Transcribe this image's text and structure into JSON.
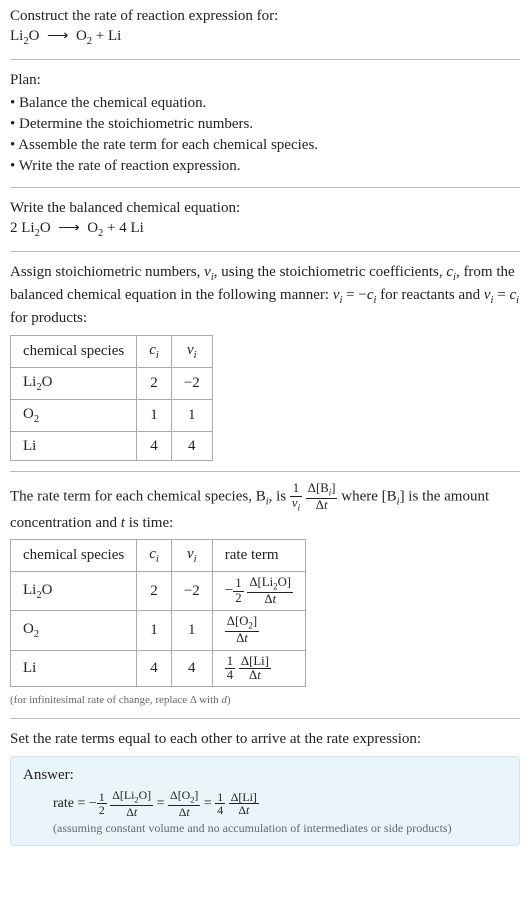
{
  "prompt": {
    "title": "Construct the rate of reaction expression for:",
    "equation_html": "Li<span class='sub'>2</span>O &nbsp;<span class='arrow'>⟶</span>&nbsp; O<span class='sub'>2</span> + Li"
  },
  "plan": {
    "heading": "Plan:",
    "items": [
      "• Balance the chemical equation.",
      "• Determine the stoichiometric numbers.",
      "• Assemble the rate term for each chemical species.",
      "• Write the rate of reaction expression."
    ]
  },
  "balanced": {
    "heading": "Write the balanced chemical equation:",
    "equation_html": "2 Li<span class='sub'>2</span>O &nbsp;<span class='arrow'>⟶</span>&nbsp; O<span class='sub'>2</span> + 4 Li"
  },
  "stoich": {
    "intro_html": "Assign stoichiometric numbers, <span class='math-i'>ν<span class='sub'>i</span></span>, using the stoichiometric coefficients, <span class='math-i'>c<span class='sub'>i</span></span>, from the balanced chemical equation in the following manner: <span class='math-i'>ν<span class='sub'>i</span></span> = −<span class='math-i'>c<span class='sub'>i</span></span> for reactants and <span class='math-i'>ν<span class='sub'>i</span></span> = <span class='math-i'>c<span class='sub'>i</span></span> for products:",
    "headers": {
      "species": "chemical species",
      "c": "c<span class='sub'>i</span>",
      "v": "ν<span class='sub'>i</span>"
    },
    "rows": [
      {
        "species_html": "Li<span class='sub'>2</span>O",
        "c": "2",
        "v": "−2"
      },
      {
        "species_html": "O<span class='sub'>2</span>",
        "c": "1",
        "v": "1"
      },
      {
        "species_html": "Li",
        "c": "4",
        "v": "4"
      }
    ]
  },
  "rate_term": {
    "intro_html": "The rate term for each chemical species, B<span class='sub'><span class='math-i'>i</span></span>, is <span class='frac'><span class='num'>1</span><span class='den'><span class='math-i'>ν<span class='sub'>i</span></span></span></span> <span class='frac'><span class='num'>Δ[B<span class='sub'><span class='math-i'>i</span></span>]</span><span class='den'>Δ<span class='math-i'>t</span></span></span> where [B<span class='sub'><span class='math-i'>i</span></span>] is the amount concentration and <span class='math-i'>t</span> is time:",
    "headers": {
      "species": "chemical species",
      "c": "c<span class='sub'>i</span>",
      "v": "ν<span class='sub'>i</span>",
      "rate": "rate term"
    },
    "rows": [
      {
        "species_html": "Li<span class='sub'>2</span>O",
        "c": "2",
        "v": "−2",
        "rate_html": "−<span class='frac'><span class='num'>1</span><span class='den'>2</span></span> <span class='frac'><span class='num'>Δ[Li<span class='sub'>2</span>O]</span><span class='den'>Δ<span class='math-i'>t</span></span></span>"
      },
      {
        "species_html": "O<span class='sub'>2</span>",
        "c": "1",
        "v": "1",
        "rate_html": "<span class='frac'><span class='num'>Δ[O<span class='sub'>2</span>]</span><span class='den'>Δ<span class='math-i'>t</span></span></span>"
      },
      {
        "species_html": "Li",
        "c": "4",
        "v": "4",
        "rate_html": "<span class='frac'><span class='num'>1</span><span class='den'>4</span></span> <span class='frac'><span class='num'>Δ[Li]</span><span class='den'>Δ<span class='math-i'>t</span></span></span>"
      }
    ],
    "footnote_html": "(for infinitesimal rate of change, replace Δ with <span class='math-i'>d</span>)"
  },
  "final": {
    "heading": "Set the rate terms equal to each other to arrive at the rate expression:",
    "answer_label": "Answer:",
    "equation_html": "rate = −<span class='frac'><span class='num'>1</span><span class='den'>2</span></span> <span class='frac'><span class='num'>Δ[Li<span class='sub'>2</span>O]</span><span class='den'>Δ<span class='math-i'>t</span></span></span> = <span class='frac'><span class='num'>Δ[O<span class='sub'>2</span>]</span><span class='den'>Δ<span class='math-i'>t</span></span></span> = <span class='frac'><span class='num'>1</span><span class='den'>4</span></span> <span class='frac'><span class='num'>Δ[Li]</span><span class='den'>Δ<span class='math-i'>t</span></span></span>",
    "note": "(assuming constant volume and no accumulation of intermediates or side products)"
  },
  "colors": {
    "separator": "#bbbbbb",
    "table_border": "#aaaaaa",
    "answer_bg": "#e9f4fb",
    "answer_border": "#cfe3ef",
    "note_color": "#666666"
  }
}
